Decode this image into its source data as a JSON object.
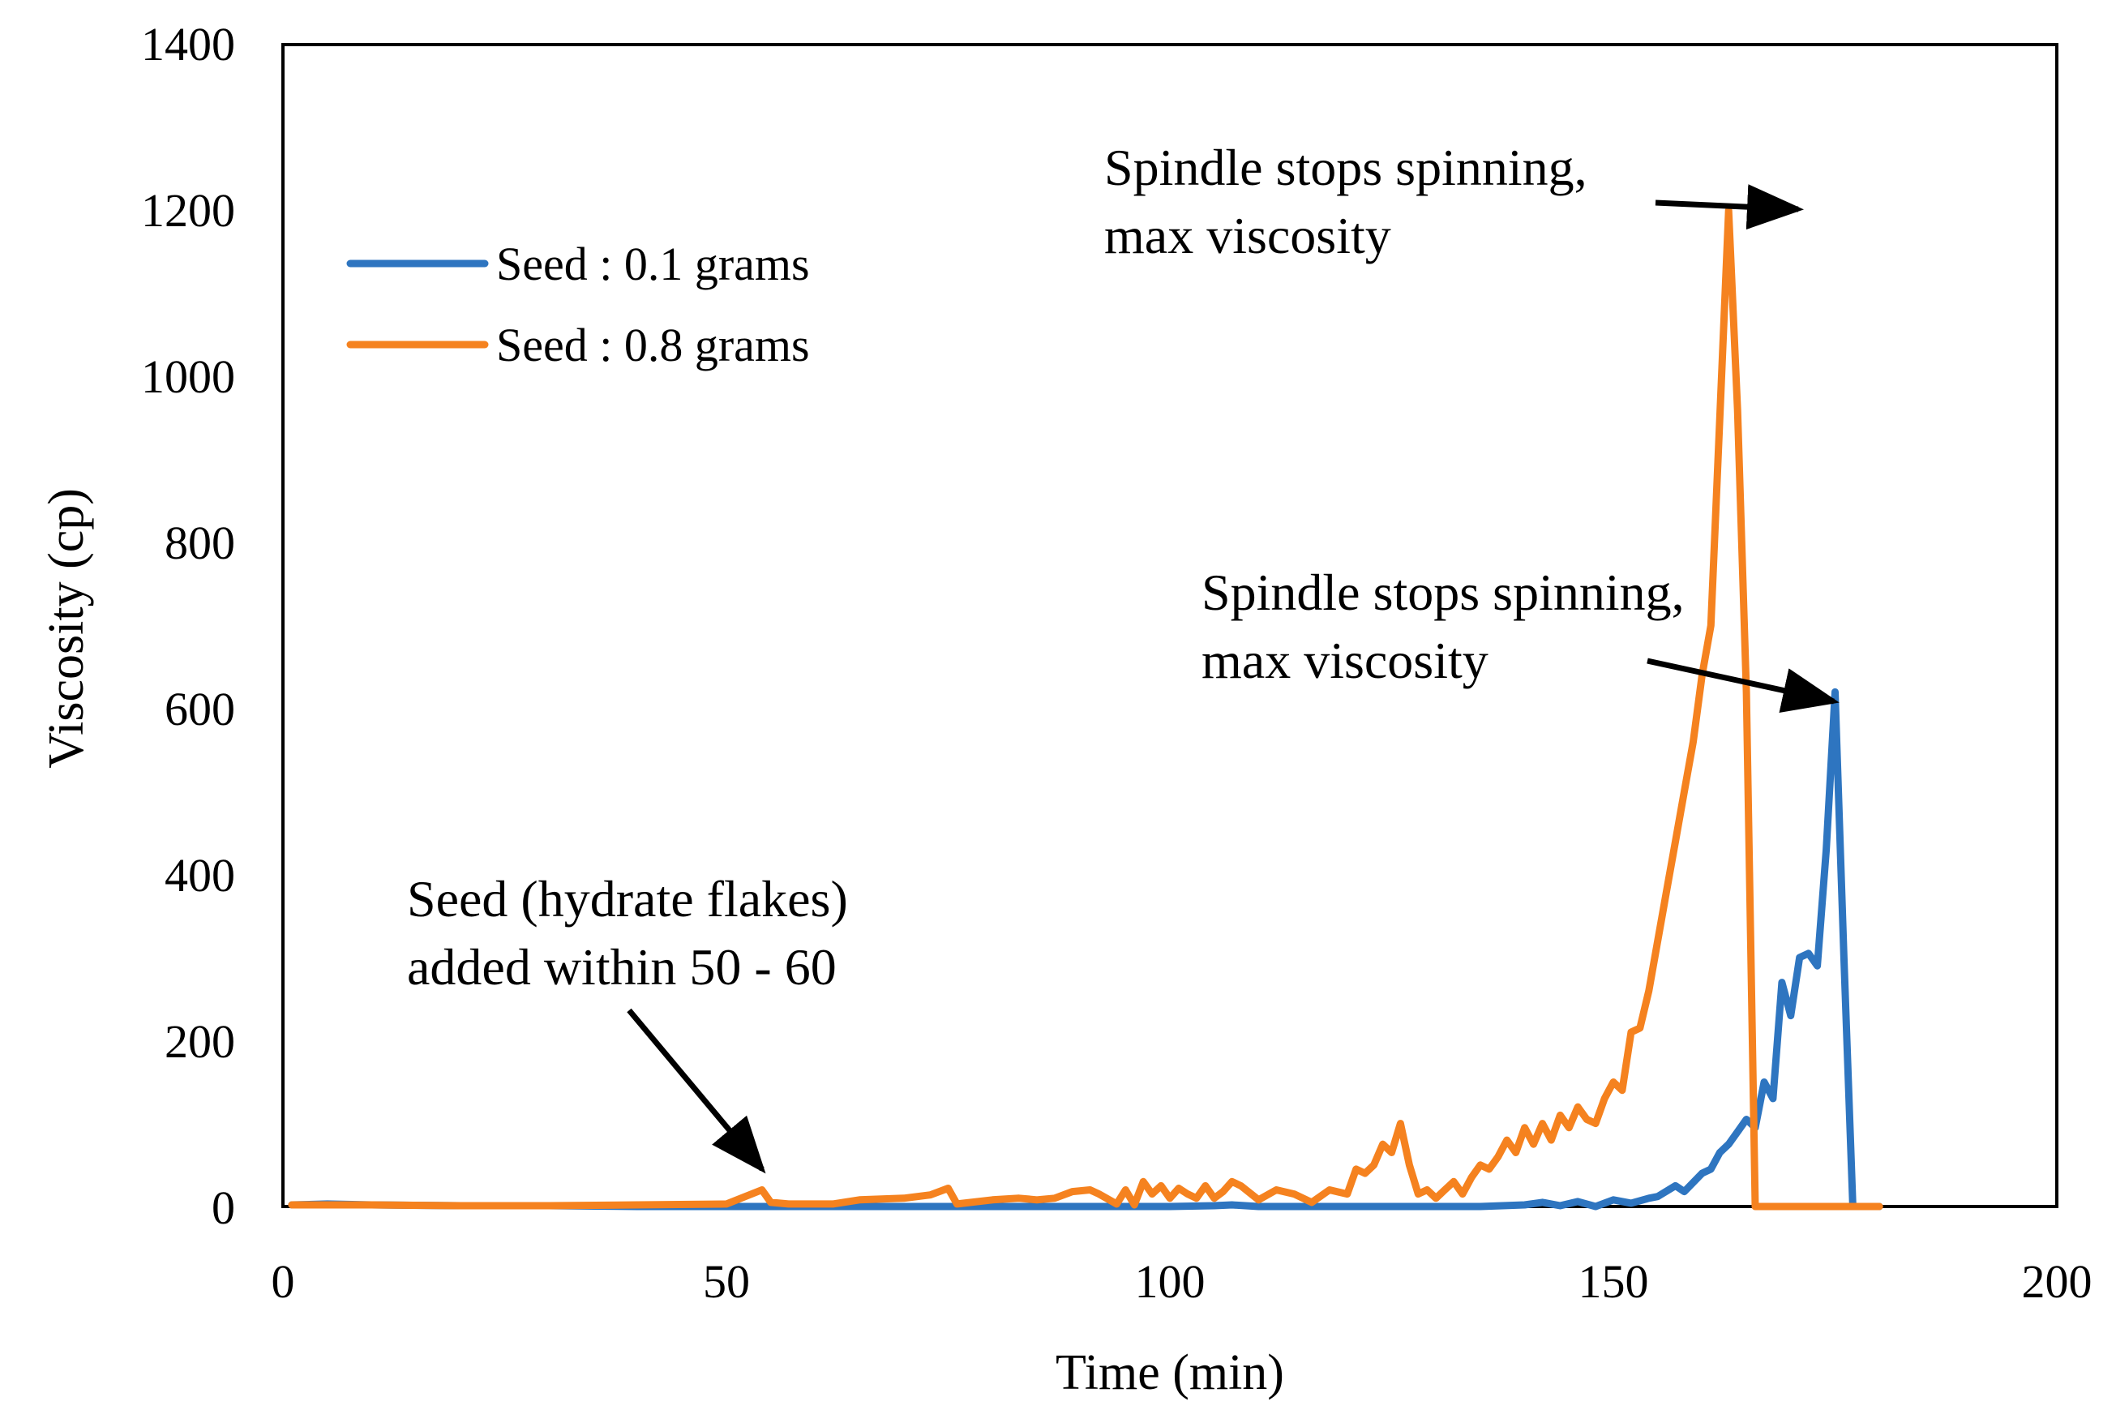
{
  "chart_data": {
    "type": "line",
    "title": "",
    "xlabel": "Time (min)",
    "ylabel": "Viscosity (cp)",
    "xlim": [
      0,
      200
    ],
    "ylim": [
      0,
      1400
    ],
    "xticks": [
      0,
      50,
      100,
      150,
      200
    ],
    "yticks": [
      0,
      200,
      400,
      600,
      800,
      1000,
      1200,
      1400
    ],
    "xtick_labels": [
      "0",
      "50",
      "100",
      "150",
      "200"
    ],
    "ytick_labels": [
      "0",
      "200",
      "400",
      "600",
      "800",
      "1000",
      "1200",
      "1400"
    ],
    "grid": false,
    "legend_position": "top-left",
    "series": [
      {
        "name": "Seed : 0.1 grams",
        "color": "#2E75C0",
        "x": [
          1,
          5,
          10,
          20,
          30,
          40,
          50,
          60,
          70,
          80,
          90,
          100,
          105,
          107,
          110,
          120,
          125,
          130,
          135,
          140,
          142,
          144,
          146,
          148,
          150,
          152,
          154,
          155,
          157,
          158,
          160,
          161,
          162,
          163,
          164,
          165,
          166,
          167,
          168,
          169,
          170,
          171,
          172,
          173,
          174,
          175,
          176,
          177,
          178,
          179,
          180
        ],
        "values": [
          2,
          3,
          2,
          1,
          1,
          0,
          0,
          0,
          0,
          0,
          0,
          0,
          1,
          2,
          0,
          0,
          0,
          0,
          0,
          2,
          5,
          1,
          6,
          0,
          8,
          4,
          10,
          12,
          25,
          18,
          40,
          45,
          65,
          75,
          90,
          105,
          95,
          150,
          130,
          270,
          230,
          300,
          305,
          290,
          430,
          620,
          300,
          0,
          0,
          0,
          0
        ],
        "line_type": "solid"
      },
      {
        "name": "Seed : 0.8 grams",
        "color": "#F5821F",
        "x": [
          1,
          10,
          20,
          30,
          40,
          50,
          54,
          55,
          57,
          62,
          65,
          70,
          73,
          75,
          76,
          80,
          83,
          85,
          87,
          89,
          91,
          92,
          94,
          95,
          96,
          97,
          98,
          99,
          100,
          101,
          102,
          103,
          104,
          105,
          106,
          107,
          108,
          110,
          112,
          114,
          116,
          118,
          120,
          121,
          122,
          123,
          124,
          125,
          126,
          127,
          128,
          129,
          130,
          131,
          132,
          133,
          134,
          135,
          136,
          137,
          138,
          139,
          140,
          141,
          142,
          143,
          144,
          145,
          146,
          147,
          148,
          149,
          150,
          151,
          152,
          153,
          154,
          155,
          156,
          157,
          158,
          159,
          160,
          161,
          162,
          163,
          164,
          165,
          166,
          167,
          168,
          169,
          170,
          171,
          172,
          172.5,
          173,
          173.5,
          174,
          175,
          175.5,
          176,
          177,
          178,
          179,
          180
        ],
        "values": [
          2,
          2,
          1,
          1,
          2,
          3,
          20,
          5,
          3,
          3,
          8,
          10,
          14,
          22,
          3,
          8,
          10,
          8,
          10,
          18,
          20,
          15,
          3,
          20,
          2,
          30,
          15,
          25,
          10,
          22,
          15,
          10,
          25,
          10,
          18,
          30,
          25,
          8,
          20,
          15,
          5,
          20,
          15,
          45,
          40,
          50,
          75,
          65,
          100,
          50,
          15,
          20,
          10,
          20,
          30,
          15,
          35,
          50,
          45,
          60,
          80,
          65,
          95,
          75,
          100,
          80,
          110,
          95,
          120,
          105,
          100,
          130,
          150,
          140,
          210,
          215,
          260,
          320,
          380,
          440,
          500,
          560,
          640,
          700,
          950,
          1200,
          960,
          620,
          0,
          0,
          0,
          0,
          0,
          0,
          0,
          0,
          0,
          0,
          0,
          0,
          0,
          0,
          0,
          0,
          0,
          0
        ],
        "line_type": "solid"
      }
    ],
    "annotations": [
      {
        "lines": [
          "Spindle stops spinning,",
          "max viscosity"
        ],
        "points_to_x": 173,
        "points_to_y": 1200
      },
      {
        "lines": [
          "Spindle stops spinning,",
          "max viscosity"
        ],
        "points_to_x": 176.5,
        "points_to_y": 620
      },
      {
        "lines": [
          "Seed (hydrate flakes)",
          "added within 50 - 60"
        ],
        "points_to_x": 54.5,
        "points_to_y": 20
      }
    ]
  }
}
